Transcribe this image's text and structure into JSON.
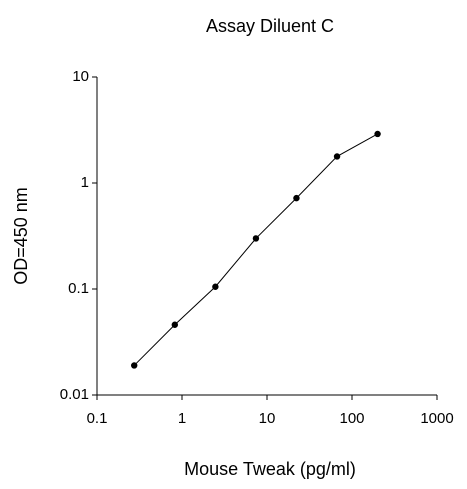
{
  "chart_data": {
    "type": "line",
    "title": "Assay Diluent C",
    "x_label": "Mouse Tweak (pg/ml)",
    "y_label": "OD=450 nm",
    "x": [
      0.274,
      0.823,
      2.47,
      7.41,
      22.2,
      66.7,
      200
    ],
    "series": [
      {
        "name": "Assay Diluent C",
        "color": "#000000",
        "values": [
          0.019,
          0.046,
          0.105,
          0.3,
          0.72,
          1.78,
          2.9
        ]
      }
    ],
    "xlim": [
      0.1,
      1000
    ],
    "ylim": [
      0.01,
      10
    ],
    "xticks": [
      0.1,
      1,
      10,
      100,
      1000
    ],
    "yticks": [
      0.01,
      0.1,
      1,
      10
    ],
    "xscale": "log",
    "yscale": "log",
    "grid": false
  }
}
